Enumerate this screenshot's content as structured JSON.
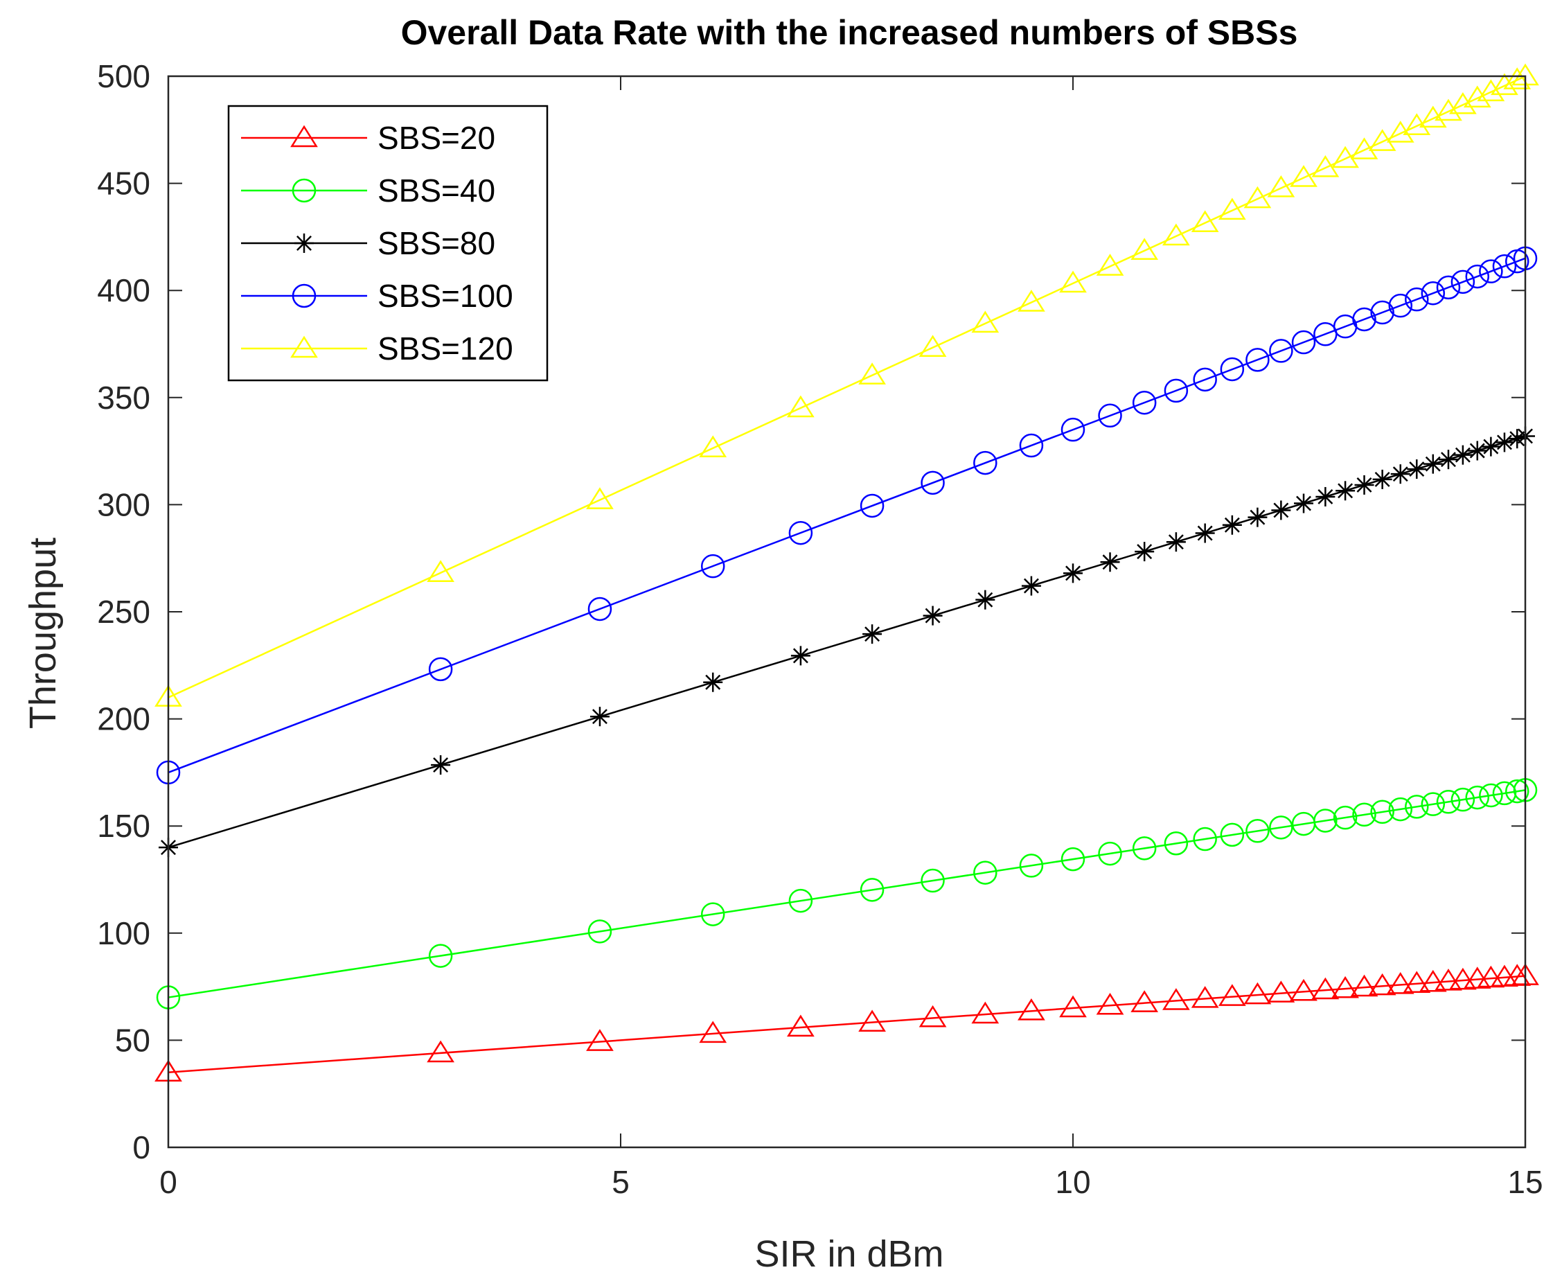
{
  "chart_data": {
    "type": "line",
    "title": "Overall Data Rate with the increased numbers of SBSs",
    "xlabel": "SIR in dBm",
    "ylabel": "Throughput",
    "xlim": [
      0,
      15
    ],
    "ylim": [
      0,
      500
    ],
    "xticks": [
      0,
      5,
      10,
      15
    ],
    "yticks": [
      0,
      50,
      100,
      150,
      200,
      250,
      300,
      350,
      400,
      450,
      500
    ],
    "grid": false,
    "legend_position": "top-left",
    "x": [
      0,
      3.01,
      4.77,
      6.02,
      6.99,
      7.78,
      8.45,
      9.03,
      9.54,
      10,
      10.41,
      10.79,
      11.14,
      11.46,
      11.76,
      12.04,
      12.3,
      12.55,
      12.79,
      13.01,
      13.22,
      13.42,
      13.62,
      13.8,
      13.98,
      14.15,
      14.31,
      14.47,
      14.62,
      14.77,
      14.91,
      15
    ],
    "series": [
      {
        "name": "SBS=20",
        "color": "#ff0000",
        "marker": "triangle",
        "slope": 3.0,
        "intercept": 35,
        "values": [
          35,
          44,
          49.3,
          53.1,
          56,
          58.3,
          60.4,
          62.1,
          63.6,
          65,
          66.2,
          67.4,
          68.4,
          69.4,
          70.3,
          71.1,
          71.9,
          72.7,
          73.4,
          74,
          74.7,
          75.3,
          75.9,
          76.4,
          76.9,
          77.5,
          77.9,
          78.4,
          78.9,
          79.3,
          79.7,
          80
        ]
      },
      {
        "name": "SBS=40",
        "color": "#00ff00",
        "marker": "circle",
        "slope": 6.45,
        "intercept": 70,
        "values": [
          70,
          89.4,
          100.8,
          108.8,
          115.1,
          120.2,
          124.5,
          128.2,
          131.5,
          134.5,
          137.1,
          139.6,
          141.9,
          143.9,
          145.9,
          147.7,
          149.3,
          151,
          152.5,
          153.9,
          155.3,
          156.6,
          157.8,
          159,
          160.2,
          161.3,
          162.3,
          163.3,
          164.3,
          165.3,
          166.2,
          166.8
        ]
      },
      {
        "name": "SBS=80",
        "color": "#000000",
        "marker": "star",
        "slope": 12.8,
        "intercept": 140,
        "values": [
          140,
          178.5,
          201.1,
          217.1,
          229.5,
          239.6,
          248.2,
          255.6,
          262.1,
          268,
          273.2,
          278.1,
          282.6,
          286.7,
          290.5,
          294.1,
          297.4,
          300.6,
          303.7,
          306.5,
          309.2,
          311.8,
          314.3,
          316.6,
          319,
          321.1,
          323.2,
          325.2,
          327.1,
          329.1,
          330.8,
          332
        ]
      },
      {
        "name": "SBS=100",
        "color": "#0000ff",
        "marker": "circle",
        "slope": 16.0,
        "intercept": 175,
        "values": [
          175,
          223.2,
          251.3,
          271.3,
          286.8,
          299.5,
          310.2,
          319.5,
          327.6,
          335,
          341.6,
          347.6,
          353.2,
          358.4,
          363.2,
          367.6,
          371.8,
          375.8,
          379.6,
          383.2,
          386.5,
          389.7,
          392.9,
          395.8,
          398.7,
          401.4,
          404,
          406.5,
          408.9,
          411.3,
          413.6,
          415
        ]
      },
      {
        "name": "SBS=120",
        "color": "#ffff00",
        "marker": "triangle",
        "slope": 19.33,
        "intercept": 210,
        "values": [
          210,
          268.2,
          302.2,
          326.4,
          345.1,
          360.4,
          373.3,
          384.6,
          394.4,
          403.3,
          411.2,
          418.6,
          425.3,
          431.5,
          437.3,
          442.7,
          447.8,
          452.6,
          457.2,
          461.5,
          465.5,
          469.4,
          473.3,
          476.8,
          480.3,
          483.5,
          486.6,
          489.7,
          492.6,
          495.5,
          498.2,
          500
        ]
      }
    ]
  }
}
